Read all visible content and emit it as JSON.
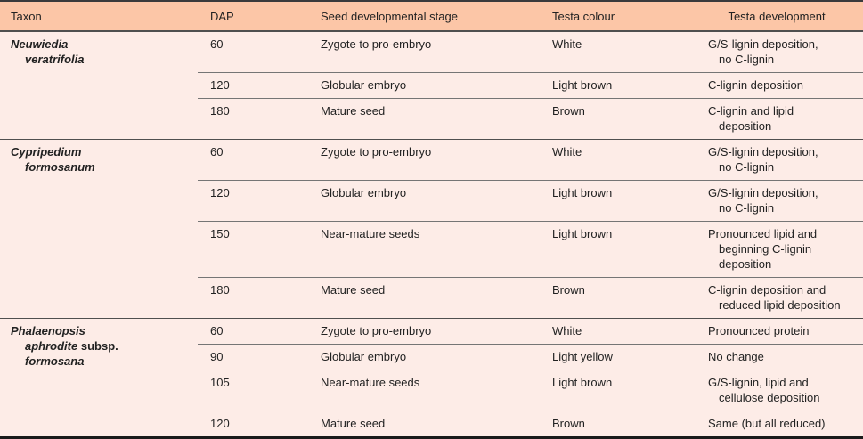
{
  "colors": {
    "header_bg": "#fcc6a7",
    "body_bg": "#fdece7",
    "text": "#222222",
    "rule_strong": "#4f4f4f",
    "rule_light": "#757575",
    "border_top": "#3a3a3c",
    "border_bottom": "#1a1a1a"
  },
  "table": {
    "columns": [
      "Taxon",
      "DAP",
      "Seed developmental stage",
      "Testa colour",
      "Testa development"
    ],
    "groups": [
      {
        "taxon_html": "<i>Neuwiedia</i><br><i>veratrifolia</i>",
        "rows": [
          {
            "dap": "60",
            "stage": "Zygote to pro-embryo",
            "testa_colour": "White",
            "testa_development": "G/S-lignin deposition,\nno C-lignin"
          },
          {
            "dap": "120",
            "stage": "Globular embryo",
            "testa_colour": "Light brown",
            "testa_development": "C-lignin deposition"
          },
          {
            "dap": "180",
            "stage": "Mature seed",
            "testa_colour": "Brown",
            "testa_development": "C-lignin and lipid\ndeposition"
          }
        ]
      },
      {
        "taxon_html": "<i>Cypripedium</i><br><i>formosanum</i>",
        "rows": [
          {
            "dap": "60",
            "stage": "Zygote to pro-embryo",
            "testa_colour": "White",
            "testa_development": "G/S-lignin deposition,\nno C-lignin"
          },
          {
            "dap": "120",
            "stage": "Globular embryo",
            "testa_colour": "Light brown",
            "testa_development": "G/S-lignin deposition,\nno C-lignin"
          },
          {
            "dap": "150",
            "stage": "Near-mature seeds",
            "testa_colour": "Light brown",
            "testa_development": "Pronounced lipid and\nbeginning C-lignin\ndeposition"
          },
          {
            "dap": "180",
            "stage": "Mature seed",
            "testa_colour": "Brown",
            "testa_development": "C-lignin deposition and\nreduced lipid deposition"
          }
        ]
      },
      {
        "taxon_html": "<i>Phalaenopsis</i><br><i>aphrodite</i> subsp.<br><i>formosana</i>",
        "rows": [
          {
            "dap": "60",
            "stage": "Zygote to pro-embryo",
            "testa_colour": "White",
            "testa_development": "Pronounced protein"
          },
          {
            "dap": "90",
            "stage": "Globular embryo",
            "testa_colour": "Light yellow",
            "testa_development": "No change"
          },
          {
            "dap": "105",
            "stage": "Near-mature seeds",
            "testa_colour": "Light brown",
            "testa_development": "G/S-lignin, lipid and\ncellulose deposition"
          },
          {
            "dap": "120",
            "stage": "Mature seed",
            "testa_colour": "Brown",
            "testa_development": "Same (but all reduced)"
          }
        ]
      }
    ]
  }
}
